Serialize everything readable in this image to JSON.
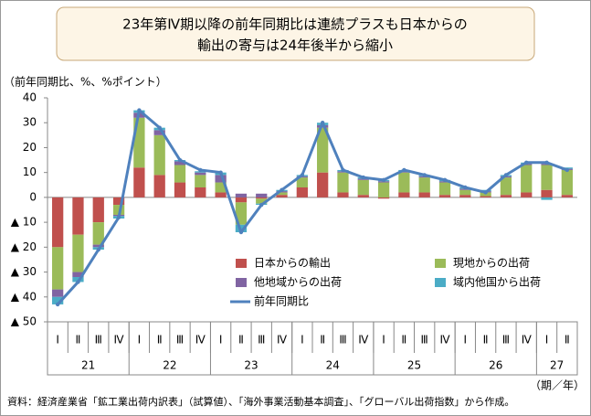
{
  "chart_data": {
    "type": "stacked_bar_line",
    "title_lines": [
      "23年第Ⅳ期以降の前年同期比は連続プラスも日本からの",
      "輸出の寄与は24年後半から縮小"
    ],
    "y_axis_label": "（前年同期比、%、%ポイント）",
    "x_axis_label": "（期／年）",
    "source": "資料：経済産業省「鉱工業出荷内訳表」（試算値）、「海外事業活動基本調査」、「グローバル出荷指数」から作成。",
    "categories": [
      "Ⅰ",
      "Ⅱ",
      "Ⅲ",
      "Ⅳ",
      "Ⅰ",
      "Ⅱ",
      "Ⅲ",
      "Ⅳ",
      "Ⅰ",
      "Ⅱ",
      "Ⅲ",
      "Ⅳ",
      "Ⅰ",
      "Ⅱ",
      "Ⅲ",
      "Ⅳ",
      "Ⅰ",
      "Ⅱ",
      "Ⅲ",
      "Ⅳ",
      "Ⅰ",
      "Ⅱ",
      "Ⅲ",
      "Ⅳ",
      "Ⅰ",
      "Ⅱ"
    ],
    "groups": [
      {
        "label": "21",
        "count": 4
      },
      {
        "label": "22",
        "count": 4
      },
      {
        "label": "23",
        "count": 4
      },
      {
        "label": "24",
        "count": 4
      },
      {
        "label": "25",
        "count": 4
      },
      {
        "label": "26",
        "count": 4
      },
      {
        "label": "27",
        "count": 2
      }
    ],
    "ylim": [
      -50,
      40
    ],
    "yticks": [
      40,
      30,
      20,
      10,
      0,
      {
        "value": -10,
        "label": "▲ 10"
      },
      {
        "value": -20,
        "label": "▲ 20"
      },
      {
        "value": -30,
        "label": "▲ 30"
      },
      {
        "value": -40,
        "label": "▲ 40"
      },
      {
        "value": -50,
        "label": "▲ 50"
      }
    ],
    "series": [
      {
        "name": "日本からの輸出",
        "kind": "bar",
        "color": "#c0504d",
        "values": [
          -20,
          -15,
          -10,
          -3,
          12,
          9,
          6,
          4,
          2,
          -2,
          -0.5,
          1,
          4,
          10,
          2,
          1,
          -0.5,
          2,
          2,
          1,
          1,
          0.5,
          1,
          2,
          3,
          1
        ]
      },
      {
        "name": "現地からの出荷",
        "kind": "bar",
        "color": "#9bbb59",
        "values": [
          -17,
          -15,
          -9,
          -4,
          20,
          16,
          7,
          5,
          4,
          -9,
          -2,
          1,
          4,
          18,
          8,
          6,
          6,
          8,
          6,
          5,
          2,
          1.5,
          7,
          11,
          10,
          10
        ]
      },
      {
        "name": "他地域からの出荷",
        "kind": "bar",
        "color": "#8064a2",
        "values": [
          -3,
          -2,
          -1,
          -0.5,
          2,
          2,
          1.5,
          1,
          3,
          1.5,
          1.5,
          0.5,
          0.5,
          1,
          0.5,
          0.5,
          0.5,
          0.5,
          0.5,
          0.5,
          0.5,
          0.5,
          0.5,
          0.5,
          0.5,
          0.5
        ]
      },
      {
        "name": "域内他国から出荷",
        "kind": "bar",
        "color": "#4bacc6",
        "values": [
          -3,
          -2,
          -1,
          -1,
          1,
          1,
          0.5,
          0.5,
          1,
          -3,
          -0.5,
          0.5,
          0.5,
          1,
          0.5,
          0.5,
          0.5,
          0.5,
          0.5,
          0.5,
          0.5,
          0.5,
          0.5,
          0.5,
          -1,
          0.5
        ]
      },
      {
        "name": "前年同期比",
        "kind": "line",
        "color": "#4f81bd",
        "values": [
          -43,
          -34,
          -21,
          -8,
          35,
          28,
          15,
          11,
          10,
          -14,
          -3,
          3,
          9,
          30,
          11,
          8,
          7,
          11,
          9,
          7,
          4,
          2,
          9,
          14,
          14,
          11
        ]
      }
    ]
  }
}
